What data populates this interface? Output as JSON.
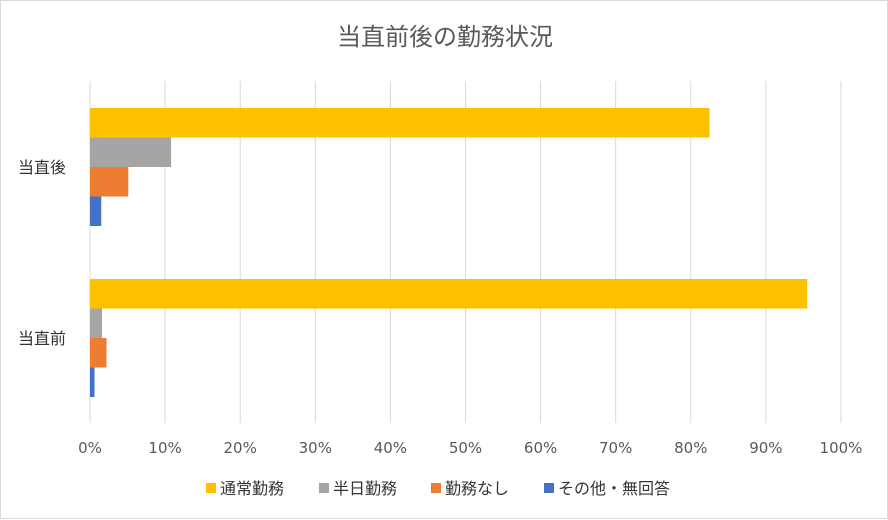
{
  "chart_data": {
    "type": "bar",
    "orientation": "horizontal",
    "title": "当直前後の勤務状況",
    "categories": [
      "当直後",
      "当直前"
    ],
    "series": [
      {
        "name": "通常勤務",
        "color": "#FFC000",
        "values": [
          82.5,
          95.5
        ]
      },
      {
        "name": "半日勤務",
        "color": "#A5A5A5",
        "values": [
          10.8,
          1.6
        ]
      },
      {
        "name": "勤務なし",
        "color": "#ED7D31",
        "values": [
          5.1,
          2.2
        ]
      },
      {
        "name": "その他・無回答",
        "color": "#4472C4",
        "values": [
          1.5,
          0.6
        ]
      }
    ],
    "xlim": [
      0,
      100
    ],
    "xticks": [
      "0%",
      "10%",
      "20%",
      "30%",
      "40%",
      "50%",
      "60%",
      "70%",
      "80%",
      "90%",
      "100%"
    ],
    "grid": true,
    "legend_position": "bottom"
  }
}
